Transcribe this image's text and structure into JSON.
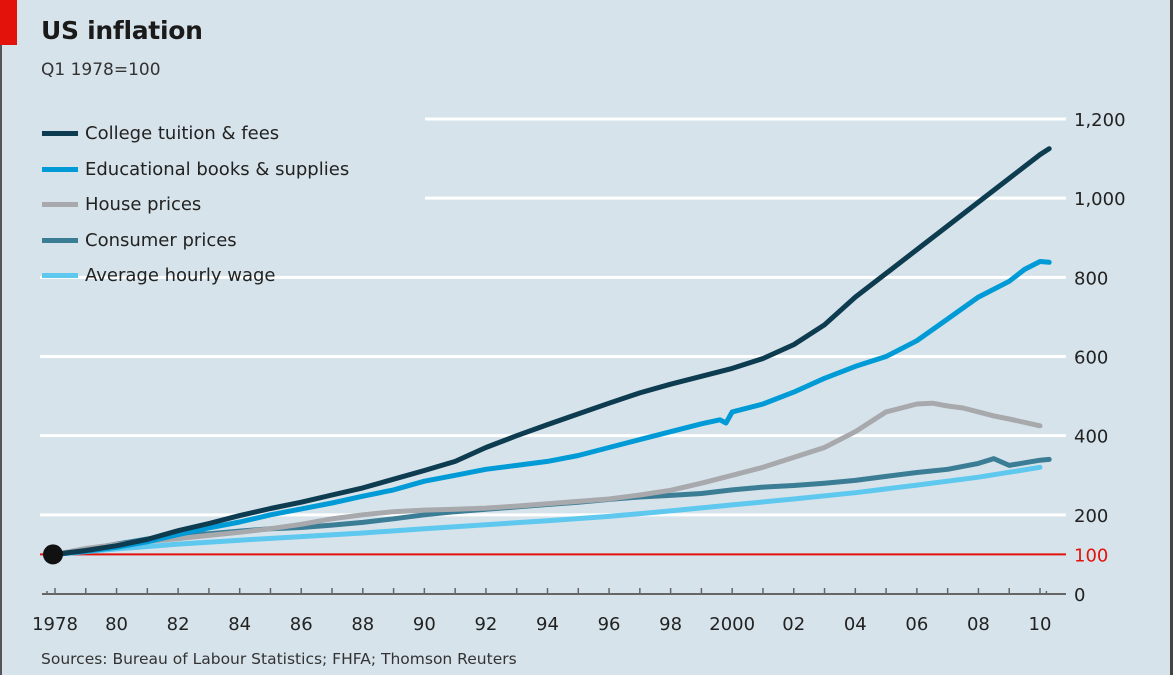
{
  "header": {
    "title": "US inflation",
    "subtitle": "Q1 1978=100"
  },
  "footer": {
    "source": "Sources: Bureau of Labour Statistics; FHFA; Thomson Reuters"
  },
  "colors": {
    "accent": "#e3120b",
    "background": "#d6e3ea",
    "gridline": "#ffffff",
    "baseline": "#e3120b",
    "axis": "#666666",
    "start_marker": "#111111"
  },
  "chart_data": {
    "type": "line",
    "title": "US inflation",
    "subtitle": "Q1 1978=100",
    "xlabel": "",
    "ylabel": "",
    "x_range": [
      1978,
      2010.3
    ],
    "ylim": [
      0,
      1200
    ],
    "y_ticks": [
      {
        "value": 0,
        "label": "0",
        "highlight": false
      },
      {
        "value": 100,
        "label": "100",
        "highlight": true
      },
      {
        "value": 200,
        "label": "200",
        "highlight": false
      },
      {
        "value": 400,
        "label": "400",
        "highlight": false
      },
      {
        "value": 600,
        "label": "600",
        "highlight": false
      },
      {
        "value": 800,
        "label": "800",
        "highlight": false
      },
      {
        "value": 1000,
        "label": "1,000",
        "highlight": false
      },
      {
        "value": 1200,
        "label": "1,200",
        "highlight": false
      }
    ],
    "x_ticks": [
      {
        "value": 1978,
        "label": "1978"
      },
      {
        "value": 1980,
        "label": "80"
      },
      {
        "value": 1982,
        "label": "82"
      },
      {
        "value": 1984,
        "label": "84"
      },
      {
        "value": 1986,
        "label": "86"
      },
      {
        "value": 1988,
        "label": "88"
      },
      {
        "value": 1990,
        "label": "90"
      },
      {
        "value": 1992,
        "label": "92"
      },
      {
        "value": 1994,
        "label": "94"
      },
      {
        "value": 1996,
        "label": "96"
      },
      {
        "value": 1998,
        "label": "98"
      },
      {
        "value": 2000,
        "label": "2000"
      },
      {
        "value": 2002,
        "label": "02"
      },
      {
        "value": 2004,
        "label": "04"
      },
      {
        "value": 2006,
        "label": "06"
      },
      {
        "value": 2008,
        "label": "08"
      },
      {
        "value": 2010,
        "label": "10"
      }
    ],
    "grid": true,
    "baseline_value": 100,
    "y_axis_side": "right",
    "legend_position": "top-left",
    "start_point": {
      "x": 1978,
      "y": 100
    },
    "series": [
      {
        "name": "College tuition & fees",
        "color": "#0d3b4f",
        "x": [
          1978,
          1979,
          1980,
          1981,
          1982,
          1983,
          1984,
          1985,
          1986,
          1987,
          1988,
          1989,
          1990,
          1991,
          1992,
          1993,
          1994,
          1995,
          1996,
          1997,
          1998,
          1999,
          2000,
          2001,
          2002,
          2003,
          2004,
          2005,
          2006,
          2007,
          2008,
          2009,
          2010,
          2010.3
        ],
        "values": [
          100,
          110,
          122,
          138,
          160,
          178,
          198,
          216,
          232,
          250,
          268,
          290,
          312,
          335,
          370,
          400,
          428,
          455,
          482,
          508,
          530,
          550,
          570,
          595,
          630,
          680,
          750,
          810,
          870,
          930,
          990,
          1050,
          1110,
          1125
        ]
      },
      {
        "name": "Educational books & supplies",
        "color": "#009bd6",
        "x": [
          1978,
          1979,
          1980,
          1981,
          1982,
          1983,
          1984,
          1985,
          1986,
          1987,
          1988,
          1989,
          1990,
          1991,
          1992,
          1993,
          1994,
          1995,
          1996,
          1997,
          1998,
          1999,
          1999.6,
          1999.8,
          2000,
          2001,
          2002,
          2003,
          2004,
          2005,
          2006,
          2007,
          2008,
          2009,
          2009.5,
          2010,
          2010.3
        ],
        "values": [
          100,
          108,
          118,
          132,
          150,
          167,
          182,
          200,
          215,
          230,
          247,
          263,
          285,
          300,
          315,
          325,
          335,
          350,
          370,
          390,
          410,
          430,
          440,
          432,
          460,
          480,
          510,
          545,
          575,
          600,
          640,
          695,
          750,
          790,
          820,
          840,
          838
        ]
      },
      {
        "name": "House prices",
        "color": "#a7a9ac",
        "x": [
          1978,
          1979,
          1980,
          1981,
          1982,
          1983,
          1984,
          1985,
          1986,
          1987,
          1988,
          1989,
          1990,
          1991,
          1992,
          1993,
          1994,
          1995,
          1996,
          1997,
          1998,
          1999,
          2000,
          2001,
          2002,
          2003,
          2004,
          2005,
          2006,
          2006.5,
          2007,
          2007.5,
          2008,
          2008.5,
          2009,
          2010,
          2010
        ],
        "values": [
          100,
          115,
          125,
          133,
          140,
          148,
          156,
          165,
          176,
          190,
          200,
          208,
          212,
          214,
          217,
          222,
          228,
          234,
          240,
          250,
          262,
          280,
          300,
          320,
          345,
          370,
          410,
          460,
          480,
          482,
          475,
          470,
          460,
          450,
          442,
          425,
          425
        ]
      },
      {
        "name": "Consumer prices",
        "color": "#3c7d96",
        "x": [
          1978,
          1979,
          1980,
          1981,
          1982,
          1983,
          1984,
          1985,
          1986,
          1987,
          1988,
          1989,
          1990,
          1991,
          1992,
          1993,
          1994,
          1995,
          1996,
          1997,
          1998,
          1999,
          2000,
          2001,
          2002,
          2003,
          2004,
          2005,
          2006,
          2007,
          2008,
          2008.5,
          2009,
          2010,
          2010.3
        ],
        "values": [
          100,
          112,
          126,
          139,
          147,
          152,
          159,
          165,
          168,
          174,
          181,
          190,
          200,
          208,
          214,
          220,
          226,
          232,
          239,
          245,
          249,
          254,
          263,
          270,
          274,
          280,
          287,
          297,
          307,
          315,
          330,
          342,
          325,
          338,
          340
        ]
      },
      {
        "name": "Average hourly wage",
        "color": "#5fc8ef",
        "x": [
          1978,
          1980,
          1982,
          1984,
          1986,
          1988,
          1990,
          1992,
          1994,
          1996,
          1998,
          2000,
          2002,
          2004,
          2006,
          2008,
          2010
        ],
        "values": [
          100,
          114,
          126,
          136,
          145,
          154,
          165,
          175,
          185,
          196,
          210,
          225,
          240,
          256,
          275,
          295,
          320
        ]
      }
    ]
  }
}
